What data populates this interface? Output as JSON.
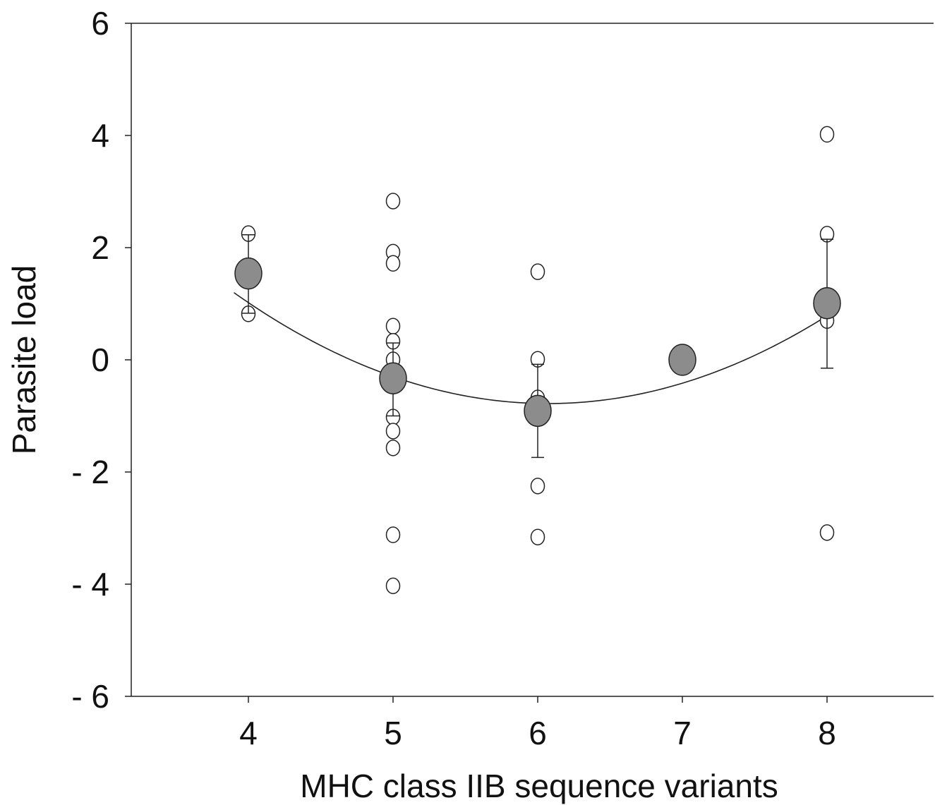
{
  "chart_data": {
    "type": "scatter",
    "xlabel": "MHC class IIB sequence variants",
    "ylabel": "Parasite load",
    "xlim": [
      3.2,
      8.8
    ],
    "ylim": [
      -6,
      6
    ],
    "x_ticks": [
      4,
      5,
      6,
      7,
      8
    ],
    "y_ticks": [
      6,
      4,
      2,
      0,
      -2,
      -4,
      -6
    ],
    "y_tick_labels": [
      "6",
      "4",
      "2",
      "0",
      "- 2",
      "- 4",
      "- 6"
    ],
    "grid": false,
    "series": [
      {
        "marker": "open-circle",
        "points": [
          {
            "x": 4,
            "y": 2.25
          },
          {
            "x": 4,
            "y": 0.82
          },
          {
            "x": 5,
            "y": 2.83
          },
          {
            "x": 5,
            "y": 1.92
          },
          {
            "x": 5,
            "y": 1.72
          },
          {
            "x": 5,
            "y": 0.6
          },
          {
            "x": 5,
            "y": 0.33
          },
          {
            "x": 5,
            "y": 0.0
          },
          {
            "x": 5,
            "y": -1.02
          },
          {
            "x": 5,
            "y": -1.27
          },
          {
            "x": 5,
            "y": -1.57
          },
          {
            "x": 5,
            "y": -3.12
          },
          {
            "x": 5,
            "y": -4.03
          },
          {
            "x": 6,
            "y": 1.57
          },
          {
            "x": 6,
            "y": 0.01
          },
          {
            "x": 6,
            "y": -0.68
          },
          {
            "x": 6,
            "y": -2.25
          },
          {
            "x": 6,
            "y": -3.16
          },
          {
            "x": 8,
            "y": 4.02
          },
          {
            "x": 8,
            "y": 2.24
          },
          {
            "x": 8,
            "y": 0.7
          },
          {
            "x": 8,
            "y": -3.08
          }
        ]
      },
      {
        "marker": "filled-circle",
        "color": "#8c8c8c",
        "points": [
          {
            "x": 4,
            "y": 1.54,
            "err_low": 0.83,
            "err_high": 2.23
          },
          {
            "x": 5,
            "y": -0.33,
            "err_low": -1.0,
            "err_high": 0.3
          },
          {
            "x": 6,
            "y": -0.91,
            "err_low": -1.74,
            "err_high": -0.08
          },
          {
            "x": 7,
            "y": 0.0
          },
          {
            "x": 8,
            "y": 1.01,
            "err_low": -0.15,
            "err_high": 2.15
          }
        ]
      }
    ],
    "fit": {
      "type": "quadratic",
      "x_range": [
        3.9,
        8.05
      ],
      "vertex_x": 6.07,
      "vertex_y": -0.78,
      "a": 0.42
    }
  }
}
